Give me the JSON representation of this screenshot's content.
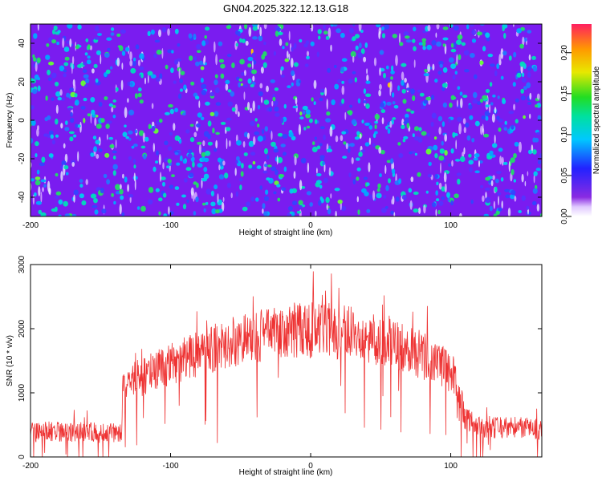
{
  "title": "GN04.2025.322.12.13.G18",
  "chart_data": [
    {
      "type": "heatmap",
      "xlabel": "Height of straight line (km)",
      "ylabel": "Frequency (Hz)",
      "xlim": [
        -200,
        165
      ],
      "ylim": [
        -50,
        50
      ],
      "xticks": [
        -200,
        -100,
        0,
        100
      ],
      "yticks": [
        -40,
        -20,
        0,
        20,
        40
      ],
      "colorbar": {
        "label": "Normalized spectral amplitude",
        "range": [
          0,
          0.235
        ],
        "ticks": [
          "0.00",
          "0.05",
          "0.10",
          "0.15",
          "0.20"
        ],
        "tick_values": [
          0,
          0.05,
          0.1,
          0.15,
          0.2
        ]
      },
      "colors": {
        "background": "#7a1cf0",
        "hot": "#ff3030"
      }
    },
    {
      "type": "line",
      "xlabel": "Height of straight line (km)",
      "ylabel": "SNR (10 * v/v)",
      "xlim": [
        -200,
        165
      ],
      "ylim": [
        0,
        3000
      ],
      "xticks": [
        -200,
        -100,
        0,
        100
      ],
      "yticks": [
        0,
        1000,
        2000,
        3000
      ],
      "series": [
        {
          "name": "SNR",
          "color": "#ee3333",
          "x": [
            -200,
            -180,
            -160,
            -140,
            -135,
            -134,
            -120,
            -100,
            -80,
            -60,
            -40,
            -20,
            0,
            20,
            40,
            60,
            80,
            90,
            100,
            105,
            110,
            120,
            140,
            150,
            165
          ],
          "values": [
            380,
            400,
            380,
            380,
            380,
            1150,
            1250,
            1450,
            1600,
            1780,
            1880,
            1950,
            1980,
            1960,
            1880,
            1780,
            1580,
            1460,
            1320,
            1150,
            600,
            480,
            450,
            470,
            430
          ],
          "spread": [
            160,
            160,
            160,
            160,
            160,
            260,
            300,
            330,
            360,
            400,
            420,
            440,
            450,
            440,
            420,
            400,
            380,
            350,
            320,
            300,
            180,
            170,
            170,
            170,
            170
          ]
        }
      ]
    }
  ]
}
